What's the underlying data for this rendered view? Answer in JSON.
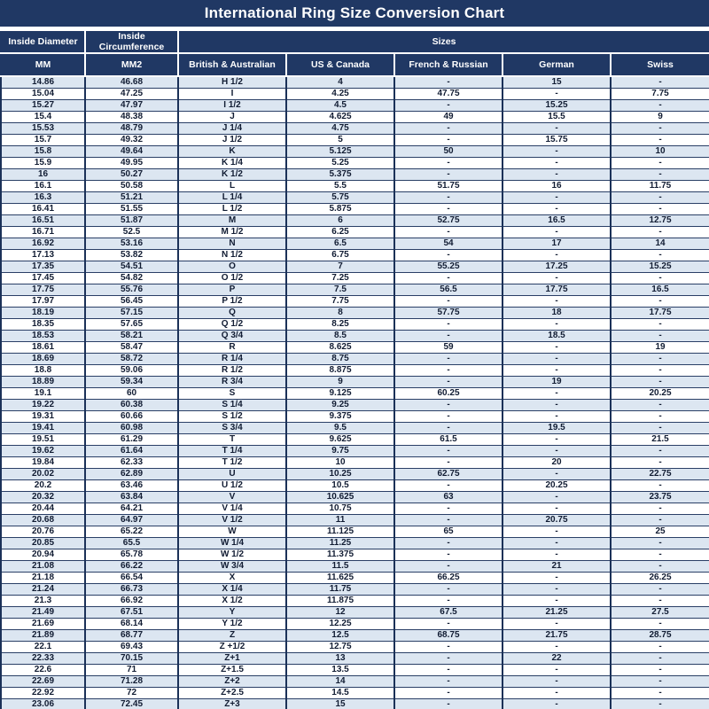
{
  "title": "International Ring Size Conversion Chart",
  "chart_data": {
    "type": "table",
    "title": "International Ring Size Conversion Chart",
    "group_headers": [
      {
        "label": "Inside Diameter",
        "span": 1
      },
      {
        "label": "Inside Circumference",
        "span": 1
      },
      {
        "label": "Sizes",
        "span": 5
      }
    ],
    "columns": [
      "MM",
      "MM2",
      "British & Australian",
      "US & Canada",
      "French & Russian",
      "German",
      "Swiss"
    ],
    "rows": [
      [
        "14.86",
        "46.68",
        "H 1/2",
        "4",
        "-",
        "15",
        "-"
      ],
      [
        "15.04",
        "47.25",
        "I",
        "4.25",
        "47.75",
        "-",
        "7.75"
      ],
      [
        "15.27",
        "47.97",
        "I 1/2",
        "4.5",
        "-",
        "15.25",
        "-"
      ],
      [
        "15.4",
        "48.38",
        "J",
        "4.625",
        "49",
        "15.5",
        "9"
      ],
      [
        "15.53",
        "48.79",
        "J 1/4",
        "4.75",
        "-",
        "-",
        "-"
      ],
      [
        "15.7",
        "49.32",
        "J 1/2",
        "5",
        "-",
        "15.75",
        "-"
      ],
      [
        "15.8",
        "49.64",
        "K",
        "5.125",
        "50",
        "-",
        "10"
      ],
      [
        "15.9",
        "49.95",
        "K 1/4",
        "5.25",
        "-",
        "-",
        "-"
      ],
      [
        "16",
        "50.27",
        "K 1/2",
        "5.375",
        "-",
        "-",
        "-"
      ],
      [
        "16.1",
        "50.58",
        "L",
        "5.5",
        "51.75",
        "16",
        "11.75"
      ],
      [
        "16.3",
        "51.21",
        "L 1/4",
        "5.75",
        "-",
        "-",
        "-"
      ],
      [
        "16.41",
        "51.55",
        "L 1/2",
        "5.875",
        "-",
        "-",
        "-"
      ],
      [
        "16.51",
        "51.87",
        "M",
        "6",
        "52.75",
        "16.5",
        "12.75"
      ],
      [
        "16.71",
        "52.5",
        "M 1/2",
        "6.25",
        "-",
        "-",
        "-"
      ],
      [
        "16.92",
        "53.16",
        "N",
        "6.5",
        "54",
        "17",
        "14"
      ],
      [
        "17.13",
        "53.82",
        "N 1/2",
        "6.75",
        "-",
        "-",
        "-"
      ],
      [
        "17.35",
        "54.51",
        "O",
        "7",
        "55.25",
        "17.25",
        "15.25"
      ],
      [
        "17.45",
        "54.82",
        "O 1/2",
        "7.25",
        "-",
        "-",
        "-"
      ],
      [
        "17.75",
        "55.76",
        "P",
        "7.5",
        "56.5",
        "17.75",
        "16.5"
      ],
      [
        "17.97",
        "56.45",
        "P 1/2",
        "7.75",
        "-",
        "-",
        "-"
      ],
      [
        "18.19",
        "57.15",
        "Q",
        "8",
        "57.75",
        "18",
        "17.75"
      ],
      [
        "18.35",
        "57.65",
        "Q 1/2",
        "8.25",
        "-",
        "-",
        "-"
      ],
      [
        "18.53",
        "58.21",
        "Q 3/4",
        "8.5",
        "-",
        "18.5",
        "-"
      ],
      [
        "18.61",
        "58.47",
        "R",
        "8.625",
        "59",
        "-",
        "19"
      ],
      [
        "18.69",
        "58.72",
        "R 1/4",
        "8.75",
        "-",
        "-",
        "-"
      ],
      [
        "18.8",
        "59.06",
        "R 1/2",
        "8.875",
        "-",
        "-",
        "-"
      ],
      [
        "18.89",
        "59.34",
        "R 3/4",
        "9",
        "-",
        "19",
        "-"
      ],
      [
        "19.1",
        "60",
        "S",
        "9.125",
        "60.25",
        "-",
        "20.25"
      ],
      [
        "19.22",
        "60.38",
        "S 1/4",
        "9.25",
        "-",
        "-",
        "-"
      ],
      [
        "19.31",
        "60.66",
        "S 1/2",
        "9.375",
        "-",
        "-",
        "-"
      ],
      [
        "19.41",
        "60.98",
        "S 3/4",
        "9.5",
        "-",
        "19.5",
        "-"
      ],
      [
        "19.51",
        "61.29",
        "T",
        "9.625",
        "61.5",
        "-",
        "21.5"
      ],
      [
        "19.62",
        "61.64",
        "T 1/4",
        "9.75",
        "-",
        "-",
        "-"
      ],
      [
        "19.84",
        "62.33",
        "T 1/2",
        "10",
        "-",
        "20",
        "-"
      ],
      [
        "20.02",
        "62.89",
        "U",
        "10.25",
        "62.75",
        "-",
        "22.75"
      ],
      [
        "20.2",
        "63.46",
        "U 1/2",
        "10.5",
        "-",
        "20.25",
        "-"
      ],
      [
        "20.32",
        "63.84",
        "V",
        "10.625",
        "63",
        "-",
        "23.75"
      ],
      [
        "20.44",
        "64.21",
        "V 1/4",
        "10.75",
        "-",
        "-",
        "-"
      ],
      [
        "20.68",
        "64.97",
        "V 1/2",
        "11",
        "-",
        "20.75",
        "-"
      ],
      [
        "20.76",
        "65.22",
        "W",
        "11.125",
        "65",
        "-",
        "25"
      ],
      [
        "20.85",
        "65.5",
        "W 1/4",
        "11.25",
        "-",
        "-",
        "-"
      ],
      [
        "20.94",
        "65.78",
        "W 1/2",
        "11.375",
        "-",
        "-",
        "-"
      ],
      [
        "21.08",
        "66.22",
        "W 3/4",
        "11.5",
        "-",
        "21",
        "-"
      ],
      [
        "21.18",
        "66.54",
        "X",
        "11.625",
        "66.25",
        "-",
        "26.25"
      ],
      [
        "21.24",
        "66.73",
        "X 1/4",
        "11.75",
        "-",
        "-",
        "-"
      ],
      [
        "21.3",
        "66.92",
        "X 1/2",
        "11.875",
        "-",
        "-",
        "-"
      ],
      [
        "21.49",
        "67.51",
        "Y",
        "12",
        "67.5",
        "21.25",
        "27.5"
      ],
      [
        "21.69",
        "68.14",
        "Y 1/2",
        "12.25",
        "-",
        "-",
        "-"
      ],
      [
        "21.89",
        "68.77",
        "Z",
        "12.5",
        "68.75",
        "21.75",
        "28.75"
      ],
      [
        "22.1",
        "69.43",
        "Z +1/2",
        "12.75",
        "-",
        "-",
        "-"
      ],
      [
        "22.33",
        "70.15",
        "Z+1",
        "13",
        "-",
        "22",
        "-"
      ],
      [
        "22.6",
        "71",
        "Z+1.5",
        "13.5",
        "-",
        "-",
        "-"
      ],
      [
        "22.69",
        "71.28",
        "Z+2",
        "14",
        "-",
        "-",
        "-"
      ],
      [
        "22.92",
        "72",
        "Z+2.5",
        "14.5",
        "-",
        "-",
        "-"
      ],
      [
        "23.06",
        "72.45",
        "Z+3",
        "15",
        "-",
        "-",
        "-"
      ]
    ]
  },
  "colors": {
    "header_bg": "#203864",
    "header_text": "#ffffff",
    "band_row_bg": "#dce6f1",
    "white_row_bg": "#ffffff",
    "grid_border": "#2a3f66",
    "grid_border_strong": "#1b3158",
    "body_text": "#111c33"
  }
}
